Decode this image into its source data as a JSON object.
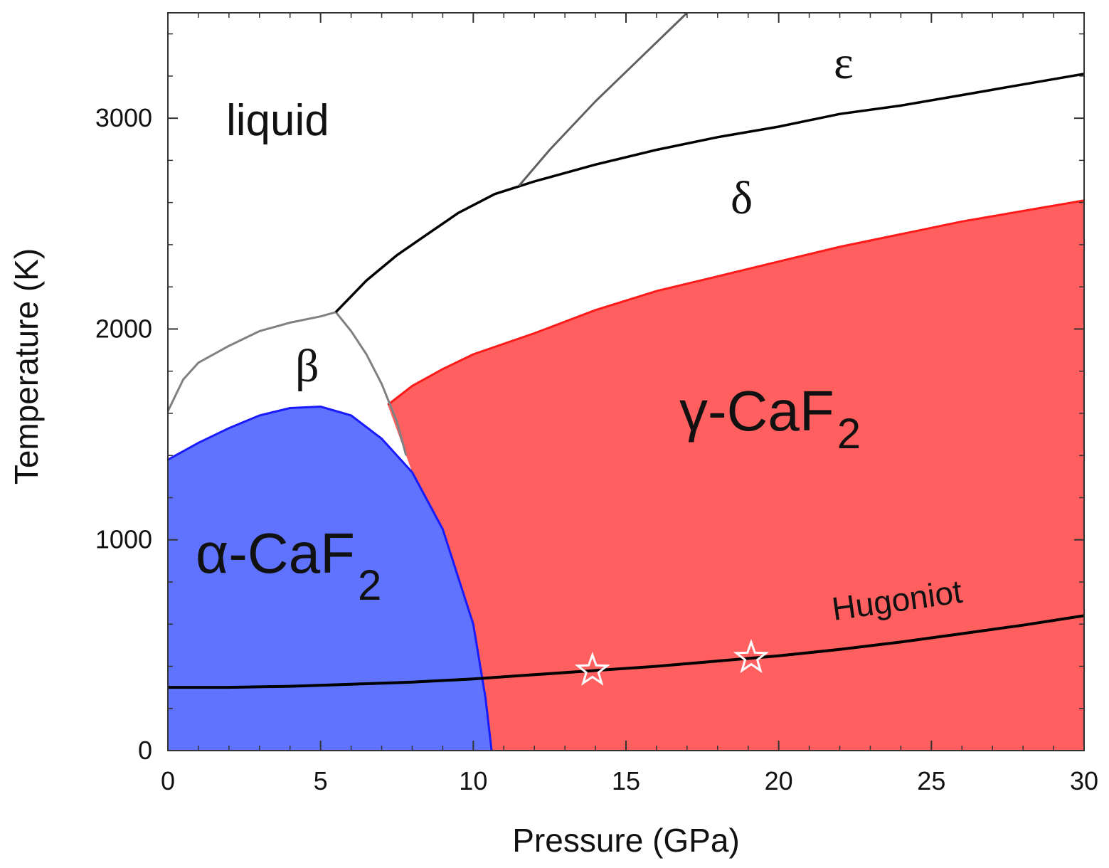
{
  "chart_data": {
    "type": "phase-diagram",
    "title": "",
    "xlabel": "Pressure (GPa)",
    "ylabel": "Temperature (K)",
    "xlim": [
      0,
      30
    ],
    "ylim": [
      0,
      3500
    ],
    "x_ticks": [
      0,
      5,
      10,
      15,
      20,
      25,
      30
    ],
    "y_ticks": [
      0,
      1000,
      2000,
      3000
    ],
    "x_tick_labels": [
      "0",
      "5",
      "10",
      "15",
      "20",
      "25",
      "30"
    ],
    "y_tick_labels": [
      "0",
      "1000",
      "2000",
      "3000"
    ],
    "regions": {
      "alpha": {
        "name": "α-CaF2",
        "label_main": "α-CaF",
        "label_sub": "2",
        "color": "#5f73ff",
        "boundary_color": "#1a1aff",
        "boundary": [
          [
            0,
            1380
          ],
          [
            1,
            1460
          ],
          [
            2,
            1530
          ],
          [
            3,
            1590
          ],
          [
            4,
            1625
          ],
          [
            5,
            1632
          ],
          [
            6,
            1590
          ],
          [
            7,
            1480
          ],
          [
            8,
            1320
          ],
          [
            9,
            1050
          ],
          [
            10,
            600
          ],
          [
            10.4,
            250
          ],
          [
            10.6,
            0
          ]
        ]
      },
      "gamma": {
        "name": "γ-CaF2",
        "label_main": "γ-CaF",
        "label_sub": "2",
        "color": "#ff5f5f",
        "boundary_color": "#ff1a1a",
        "boundary": [
          [
            7.2,
            1640
          ],
          [
            8,
            1730
          ],
          [
            9,
            1810
          ],
          [
            10,
            1880
          ],
          [
            12,
            1980
          ],
          [
            14,
            2090
          ],
          [
            16,
            2180
          ],
          [
            18,
            2250
          ],
          [
            20,
            2320
          ],
          [
            22,
            2390
          ],
          [
            24,
            2450
          ],
          [
            26,
            2510
          ],
          [
            28,
            2560
          ],
          [
            30,
            2610
          ]
        ]
      },
      "beta": {
        "name": "β"
      },
      "delta": {
        "name": "δ"
      },
      "epsilon": {
        "name": "ε"
      },
      "liquid": {
        "name": "liquid"
      }
    },
    "lines": {
      "beta_upper": {
        "color": "#808080",
        "points": [
          [
            0,
            1610
          ],
          [
            0.5,
            1760
          ],
          [
            1,
            1840
          ],
          [
            2,
            1920
          ],
          [
            3,
            1990
          ],
          [
            4,
            2030
          ],
          [
            5,
            2060
          ],
          [
            5.5,
            2080
          ]
        ]
      },
      "beta_gamma": {
        "color": "#808080",
        "points": [
          [
            5.5,
            2080
          ],
          [
            6,
            1990
          ],
          [
            6.5,
            1880
          ],
          [
            7,
            1740
          ],
          [
            7.5,
            1560
          ],
          [
            7.8,
            1400
          ]
        ]
      },
      "melting": {
        "color": "#000000",
        "points": [
          [
            5.5,
            2080
          ],
          [
            6.5,
            2230
          ],
          [
            7.5,
            2350
          ],
          [
            8.5,
            2450
          ],
          [
            9.5,
            2550
          ],
          [
            10.7,
            2640
          ],
          [
            12,
            2700
          ],
          [
            14,
            2780
          ],
          [
            16,
            2850
          ],
          [
            18,
            2910
          ],
          [
            20,
            2960
          ],
          [
            22,
            3020
          ],
          [
            24,
            3060
          ],
          [
            26,
            3110
          ],
          [
            28,
            3160
          ],
          [
            30,
            3210
          ]
        ]
      },
      "delta_epsilon": {
        "color": "#606060",
        "points": [
          [
            11.5,
            2680
          ],
          [
            12.5,
            2850
          ],
          [
            14,
            3080
          ],
          [
            15.5,
            3290
          ],
          [
            17,
            3500
          ]
        ]
      },
      "hugoniot": {
        "name": "Hugoniot",
        "color": "#000000",
        "points": [
          [
            0,
            300
          ],
          [
            2,
            300
          ],
          [
            4,
            305
          ],
          [
            6,
            315
          ],
          [
            8,
            325
          ],
          [
            10,
            340
          ],
          [
            12,
            360
          ],
          [
            14,
            380
          ],
          [
            16,
            400
          ],
          [
            18,
            425
          ],
          [
            20,
            450
          ],
          [
            22,
            480
          ],
          [
            24,
            515
          ],
          [
            26,
            555
          ],
          [
            28,
            595
          ],
          [
            30,
            640
          ]
        ]
      }
    },
    "markers": [
      {
        "symbol": "star",
        "x": 13.9,
        "y": 380
      },
      {
        "symbol": "star",
        "x": 19.1,
        "y": 440
      }
    ]
  }
}
